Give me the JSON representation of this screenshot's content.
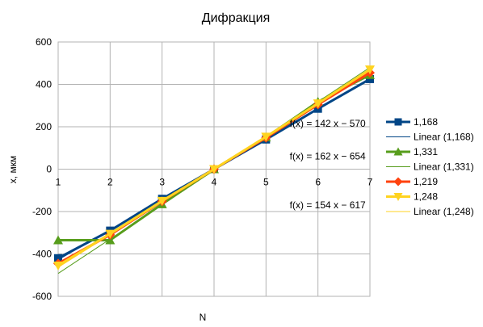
{
  "chart_data": {
    "type": "line",
    "title": "Дифракция",
    "xlabel": "N",
    "ylabel": "x, мкм",
    "x": [
      1,
      2,
      3,
      4,
      5,
      6,
      7
    ],
    "xlim": [
      1,
      7
    ],
    "ylim": [
      -600,
      600
    ],
    "xticks": [
      "1",
      "2",
      "3",
      "4",
      "5",
      "6",
      "7"
    ],
    "yticks": [
      "600",
      "400",
      "200",
      "0",
      "-200",
      "-400",
      "-600"
    ],
    "grid": true,
    "legend": "right",
    "series": [
      {
        "name": "1,168",
        "color": "#004586",
        "marker": "square",
        "values": [
          -420,
          -290,
          -140,
          0,
          140,
          285,
          425
        ]
      },
      {
        "name": "1,331",
        "color": "#579d1c",
        "marker": "triangle-up",
        "values": [
          -335,
          -335,
          -165,
          0,
          150,
          318,
          445
        ]
      },
      {
        "name": "1,219",
        "color": "#ff420e",
        "marker": "diamond",
        "values": [
          -445,
          -310,
          -152,
          0,
          148,
          305,
          455
        ]
      },
      {
        "name": "1,248",
        "color": "#ffd320",
        "marker": "triangle-down",
        "values": [
          -455,
          -305,
          -150,
          0,
          153,
          310,
          470
        ]
      }
    ],
    "trendlines": [
      {
        "name": "Linear (1,168)",
        "color": "#004586",
        "slope": 142,
        "intercept": -570
      },
      {
        "name": "Linear (1,331)",
        "color": "#579d1c",
        "slope": 162,
        "intercept": -654
      },
      {
        "name": "Linear (1,248)",
        "color": "#ffd320",
        "slope": 154,
        "intercept": -617
      }
    ],
    "annotations": [
      {
        "text": "f(x) = 142 x − 570",
        "x": 6,
        "y": 200
      },
      {
        "text": "f(x) = 162 x − 654",
        "x": 6,
        "y": 45
      },
      {
        "text": "f(x) = 154 x − 617",
        "x": 6,
        "y": -185
      }
    ]
  }
}
